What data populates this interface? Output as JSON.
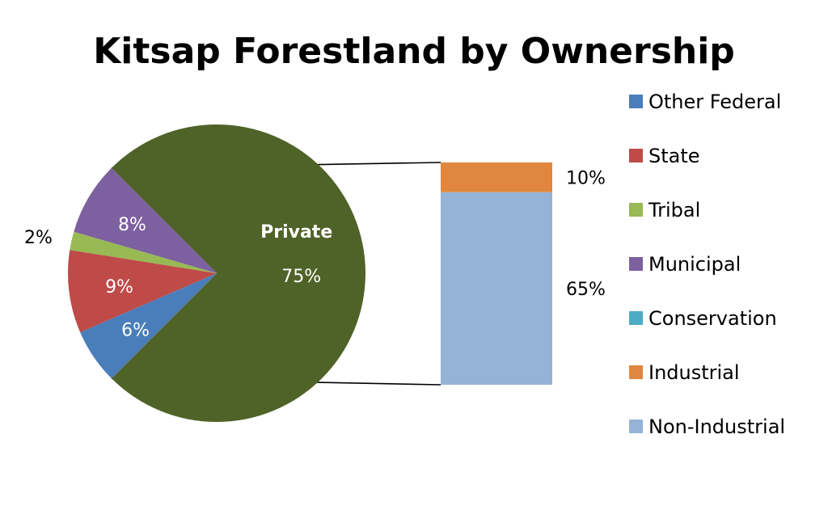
{
  "chart_data": {
    "type": "pie",
    "subtype": "bar-of-pie",
    "title": "Kitsap Forestland by Ownership",
    "pie_slices": [
      {
        "label": "Other Federal",
        "value": 6,
        "value_label": "6%",
        "color": "#4A7EBB",
        "label_color": "#FFFFFF"
      },
      {
        "label": "State",
        "value": 9,
        "value_label": "9%",
        "color": "#BE4B48",
        "label_color": "#FFFFFF"
      },
      {
        "label": "Tribal",
        "value": 2,
        "value_label": "2%",
        "color": "#98B954",
        "label_color": "#000000"
      },
      {
        "label": "Municipal",
        "value": 8,
        "value_label": "8%",
        "color": "#7D60A0",
        "label_color": "#FFFFFF"
      },
      {
        "label": "Private",
        "value": 75,
        "value_label": "75%",
        "name_label": "Private",
        "color": "#4F6228",
        "label_color": "#FFFFFF"
      }
    ],
    "bar_segments": [
      {
        "label": "Non-Industrial",
        "value": 65,
        "value_label": "65%",
        "color": "#95B3D7"
      },
      {
        "label": "Conservation",
        "value": 0,
        "value_label": "",
        "color": "#4BACC6"
      },
      {
        "label": "Industrial",
        "value": 10,
        "value_label": "10%",
        "color": "#E0863E"
      }
    ],
    "legend": {
      "position": "right",
      "items": [
        {
          "label": "Other Federal",
          "color": "#4A7EBB"
        },
        {
          "label": "State",
          "color": "#BE4B48"
        },
        {
          "label": "Tribal",
          "color": "#98B954"
        },
        {
          "label": "Municipal",
          "color": "#7D60A0"
        },
        {
          "label": "Conservation",
          "color": "#4BACC6"
        },
        {
          "label": "Industrial",
          "color": "#E0863E"
        },
        {
          "label": "Non-Industrial",
          "color": "#95B3D7"
        }
      ]
    }
  }
}
